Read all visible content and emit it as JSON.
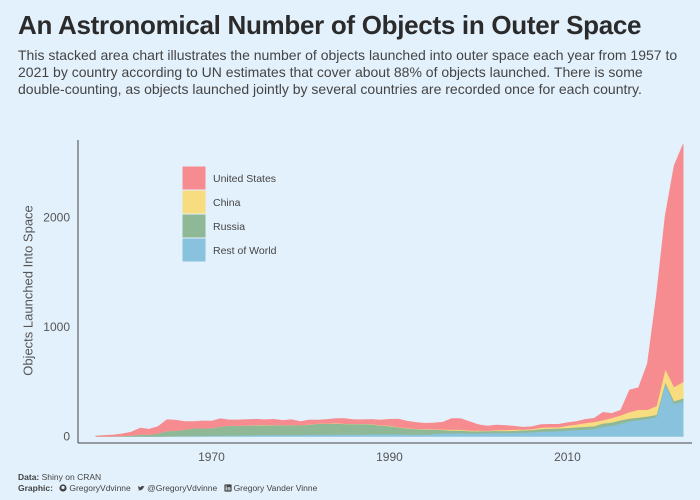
{
  "header": {
    "title": "An Astronomical Number of Objects in Outer Space",
    "subtitle": "This stacked area chart illustrates the number of objects launched into outer space each year from 1957 to 2021 by country according to UN estimates that cover about 88% of objects launched. There is some double-counting, as objects launched jointly by several countries are recorded once for each country."
  },
  "footer": {
    "data_label": "Data:",
    "data_source": "Shiny on CRAN",
    "graphic_label": "Graphic:",
    "github_icon": "github-icon",
    "github": "GregoryVdvinne",
    "twitter_icon": "twitter-icon",
    "twitter": "@GregoryVdvinne",
    "linkedin_icon": "linkedin-icon",
    "linkedin": "Gregory Vander Vinne"
  },
  "chart_data": {
    "type": "area",
    "stacked": true,
    "ylabel": "Objects Launched Into Space",
    "xlabel": "",
    "xlim": [
      1955,
      2024
    ],
    "ylim": [
      -60,
      2820
    ],
    "xticks": [
      1970,
      1990,
      2010
    ],
    "yticks": [
      0,
      1000,
      2000
    ],
    "grid": false,
    "legend_position": "top-left",
    "x": [
      1957,
      1958,
      1959,
      1960,
      1961,
      1962,
      1963,
      1964,
      1965,
      1966,
      1967,
      1968,
      1969,
      1970,
      1971,
      1972,
      1973,
      1974,
      1975,
      1976,
      1977,
      1978,
      1979,
      1980,
      1981,
      1982,
      1983,
      1984,
      1985,
      1986,
      1987,
      1988,
      1989,
      1990,
      1991,
      1992,
      1993,
      1994,
      1995,
      1996,
      1997,
      1998,
      1999,
      2000,
      2001,
      2002,
      2003,
      2004,
      2005,
      2006,
      2007,
      2008,
      2009,
      2010,
      2011,
      2012,
      2013,
      2014,
      2015,
      2016,
      2017,
      2018,
      2019,
      2020,
      2021,
      2022,
      2023
    ],
    "series": [
      {
        "name": "Rest of World",
        "color": "#89c2dd",
        "values": [
          0,
          0,
          0,
          0,
          0,
          0,
          0,
          0,
          2,
          3,
          5,
          6,
          6,
          8,
          10,
          10,
          10,
          12,
          14,
          14,
          15,
          15,
          16,
          16,
          18,
          18,
          18,
          20,
          20,
          20,
          20,
          22,
          22,
          22,
          25,
          20,
          20,
          20,
          25,
          30,
          30,
          32,
          30,
          30,
          32,
          33,
          34,
          35,
          38,
          40,
          45,
          48,
          50,
          55,
          60,
          65,
          70,
          90,
          100,
          120,
          140,
          150,
          160,
          180,
          480,
          300,
          320
        ]
      },
      {
        "name": "Russia",
        "color": "#8fb897",
        "values": [
          2,
          1,
          3,
          5,
          10,
          20,
          20,
          30,
          50,
          50,
          60,
          70,
          70,
          70,
          80,
          90,
          90,
          90,
          90,
          90,
          90,
          90,
          90,
          90,
          90,
          100,
          100,
          100,
          95,
          95,
          95,
          90,
          80,
          75,
          60,
          55,
          50,
          45,
          40,
          30,
          25,
          25,
          20,
          20,
          20,
          20,
          18,
          18,
          20,
          20,
          25,
          25,
          25,
          25,
          25,
          25,
          25,
          30,
          30,
          30,
          25,
          25,
          25,
          20,
          20,
          25,
          30
        ]
      },
      {
        "name": "China",
        "color": "#f7dc80",
        "values": [
          0,
          0,
          0,
          0,
          0,
          0,
          0,
          0,
          0,
          0,
          0,
          0,
          0,
          1,
          1,
          0,
          0,
          1,
          3,
          3,
          1,
          1,
          1,
          0,
          2,
          1,
          2,
          3,
          2,
          2,
          2,
          3,
          2,
          4,
          3,
          3,
          2,
          4,
          3,
          4,
          8,
          6,
          5,
          6,
          2,
          6,
          8,
          10,
          6,
          8,
          12,
          12,
          10,
          20,
          25,
          35,
          40,
          30,
          40,
          45,
          60,
          70,
          60,
          80,
          120,
          130,
          150
        ]
      },
      {
        "name": "United States",
        "color": "#f78c90",
        "values": [
          0,
          8,
          10,
          18,
          30,
          55,
          45,
          60,
          100,
          95,
          70,
          60,
          65,
          60,
          70,
          50,
          50,
          50,
          50,
          45,
          50,
          40,
          45,
          30,
          40,
          30,
          35,
          40,
          45,
          35,
          35,
          40,
          45,
          55,
          70,
          60,
          55,
          50,
          55,
          65,
          100,
          100,
          80,
          50,
          40,
          45,
          40,
          30,
          20,
          20,
          25,
          25,
          25,
          25,
          25,
          30,
          30,
          70,
          40,
          45,
          200,
          200,
          420,
          1000,
          1400,
          2020,
          2170
        ]
      }
    ]
  }
}
